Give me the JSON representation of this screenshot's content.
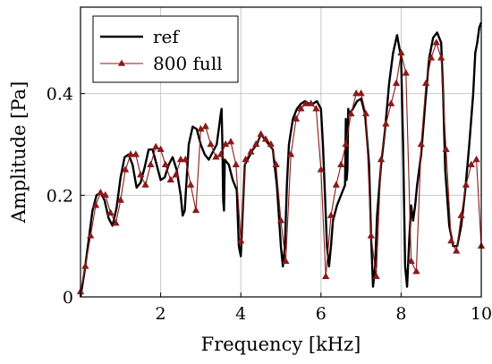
{
  "chart_data": {
    "type": "line",
    "xlabel": "Frequency [kHz]",
    "ylabel": "Amplitude [Pa]",
    "xlim": [
      0,
      10
    ],
    "ylim": [
      0,
      0.57
    ],
    "xticks": [
      2,
      4,
      6,
      8,
      10
    ],
    "yticks": [
      0,
      0.2,
      0.4
    ],
    "xtick_labels": [
      "2",
      "4",
      "6",
      "8",
      "10"
    ],
    "ytick_labels": [
      "0",
      "0.2",
      "0.4"
    ],
    "grid": true,
    "legend_position": "top-left",
    "series": [
      {
        "name": "ref",
        "color": "#000000",
        "marker": "none",
        "x": [
          0.0,
          0.1,
          0.2,
          0.3,
          0.4,
          0.5,
          0.6,
          0.7,
          0.8,
          0.9,
          1.0,
          1.1,
          1.2,
          1.3,
          1.4,
          1.5,
          1.6,
          1.7,
          1.8,
          1.9,
          2.0,
          2.1,
          2.2,
          2.3,
          2.4,
          2.5,
          2.55,
          2.6,
          2.7,
          2.8,
          2.9,
          3.0,
          3.1,
          3.2,
          3.3,
          3.4,
          3.5,
          3.52,
          3.54,
          3.56,
          3.58,
          3.6,
          3.7,
          3.8,
          3.9,
          3.95,
          4.0,
          4.05,
          4.1,
          4.2,
          4.3,
          4.4,
          4.5,
          4.6,
          4.7,
          4.8,
          4.9,
          5.0,
          5.05,
          5.1,
          5.15,
          5.2,
          5.3,
          5.4,
          5.5,
          5.6,
          5.7,
          5.8,
          5.9,
          6.0,
          6.05,
          6.1,
          6.15,
          6.2,
          6.25,
          6.3,
          6.4,
          6.5,
          6.6,
          6.62,
          6.64,
          6.66,
          6.68,
          6.7,
          6.8,
          6.9,
          7.0,
          7.1,
          7.2,
          7.25,
          7.3,
          7.35,
          7.4,
          7.5,
          7.6,
          7.7,
          7.8,
          7.9,
          8.0,
          8.05,
          8.1,
          8.15,
          8.2,
          8.25,
          8.3,
          8.35,
          8.4,
          8.5,
          8.6,
          8.7,
          8.8,
          8.9,
          9.0,
          9.05,
          9.1,
          9.2,
          9.3,
          9.4,
          9.5,
          9.6,
          9.7,
          9.8,
          9.85,
          9.9,
          9.95,
          10.0
        ],
        "y": [
          0.0,
          0.05,
          0.11,
          0.17,
          0.2,
          0.205,
          0.19,
          0.155,
          0.14,
          0.175,
          0.235,
          0.275,
          0.28,
          0.26,
          0.215,
          0.225,
          0.255,
          0.29,
          0.29,
          0.26,
          0.23,
          0.235,
          0.26,
          0.275,
          0.25,
          0.2,
          0.16,
          0.17,
          0.3,
          0.335,
          0.33,
          0.3,
          0.28,
          0.27,
          0.285,
          0.3,
          0.36,
          0.37,
          0.3,
          0.19,
          0.17,
          0.27,
          0.26,
          0.23,
          0.21,
          0.1,
          0.08,
          0.17,
          0.26,
          0.275,
          0.29,
          0.3,
          0.32,
          0.31,
          0.3,
          0.29,
          0.22,
          0.1,
          0.06,
          0.1,
          0.22,
          0.3,
          0.35,
          0.37,
          0.38,
          0.385,
          0.38,
          0.38,
          0.385,
          0.37,
          0.3,
          0.2,
          0.1,
          0.06,
          0.1,
          0.15,
          0.18,
          0.2,
          0.22,
          0.35,
          0.23,
          0.25,
          0.37,
          0.36,
          0.37,
          0.385,
          0.39,
          0.36,
          0.26,
          0.12,
          0.02,
          0.06,
          0.16,
          0.26,
          0.33,
          0.42,
          0.48,
          0.515,
          0.47,
          0.3,
          0.06,
          0.02,
          0.11,
          0.18,
          0.15,
          0.18,
          0.22,
          0.28,
          0.38,
          0.47,
          0.51,
          0.52,
          0.5,
          0.4,
          0.25,
          0.14,
          0.1,
          0.1,
          0.14,
          0.21,
          0.3,
          0.4,
          0.48,
          0.5,
          0.53,
          0.54
        ]
      },
      {
        "name": "800 full",
        "color": "#8b1a1a",
        "marker": "triangle",
        "x": [
          0.0,
          0.12,
          0.25,
          0.38,
          0.5,
          0.62,
          0.75,
          0.88,
          1.0,
          1.12,
          1.25,
          1.38,
          1.5,
          1.62,
          1.75,
          1.88,
          2.0,
          2.12,
          2.25,
          2.38,
          2.5,
          2.62,
          2.75,
          2.88,
          3.0,
          3.12,
          3.25,
          3.38,
          3.5,
          3.62,
          3.75,
          3.88,
          4.0,
          4.12,
          4.25,
          4.38,
          4.5,
          4.62,
          4.75,
          4.88,
          5.0,
          5.12,
          5.25,
          5.38,
          5.5,
          5.62,
          5.75,
          5.88,
          6.0,
          6.12,
          6.25,
          6.38,
          6.5,
          6.62,
          6.75,
          6.88,
          7.0,
          7.12,
          7.25,
          7.38,
          7.5,
          7.62,
          7.75,
          7.88,
          8.0,
          8.12,
          8.25,
          8.38,
          8.5,
          8.62,
          8.75,
          8.88,
          9.0,
          9.12,
          9.25,
          9.38,
          9.5,
          9.62,
          9.75,
          9.88,
          10.0
        ],
        "y": [
          0.01,
          0.06,
          0.12,
          0.18,
          0.205,
          0.2,
          0.165,
          0.145,
          0.19,
          0.25,
          0.28,
          0.28,
          0.24,
          0.22,
          0.26,
          0.295,
          0.29,
          0.26,
          0.23,
          0.24,
          0.27,
          0.27,
          0.22,
          0.17,
          0.33,
          0.335,
          0.3,
          0.275,
          0.28,
          0.3,
          0.305,
          0.26,
          0.11,
          0.27,
          0.285,
          0.3,
          0.32,
          0.31,
          0.3,
          0.26,
          0.15,
          0.07,
          0.28,
          0.35,
          0.37,
          0.38,
          0.38,
          0.37,
          0.25,
          0.04,
          0.16,
          0.22,
          0.26,
          0.3,
          0.36,
          0.4,
          0.4,
          0.36,
          0.12,
          0.04,
          0.27,
          0.34,
          0.38,
          0.42,
          0.48,
          0.44,
          0.07,
          0.05,
          0.3,
          0.42,
          0.47,
          0.5,
          0.47,
          0.29,
          0.11,
          0.09,
          0.16,
          0.22,
          0.26,
          0.27,
          0.1
        ]
      }
    ]
  }
}
